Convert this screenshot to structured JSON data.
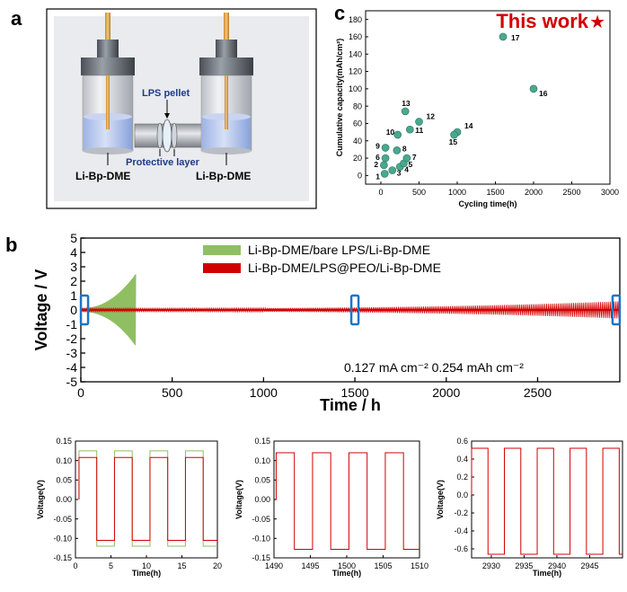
{
  "panels": {
    "a": "a",
    "b": "b",
    "c": "c"
  },
  "colors": {
    "green": "#8fbf62",
    "red": "#d10000",
    "teal": "#4aa88e",
    "box": "#1a75c8"
  },
  "diagram": {
    "pellet_label": "LPS pellet",
    "layer_label": "Protective layer",
    "left_label": "Li-Bp-DME",
    "right_label": "Li-Bp-DME"
  },
  "chart_data": [
    {
      "id": "c",
      "type": "scatter",
      "title": "",
      "badge": "This work",
      "badge_star": "★",
      "xlabel": "Cycling time(h)",
      "ylabel": "Cumulative capacity(mAh/cm²)",
      "xlim": [
        -200,
        3000
      ],
      "ylim": [
        -10,
        190
      ],
      "xticks": [
        0,
        500,
        1000,
        1500,
        2000,
        2500,
        3000
      ],
      "yticks": [
        0,
        20,
        40,
        60,
        80,
        100,
        120,
        140,
        160,
        180
      ],
      "points": [
        {
          "label": "1",
          "x": 50,
          "y": 2
        },
        {
          "label": "2",
          "x": 40,
          "y": 12
        },
        {
          "label": "3",
          "x": 150,
          "y": 6
        },
        {
          "label": "4",
          "x": 250,
          "y": 10
        },
        {
          "label": "5",
          "x": 300,
          "y": 14
        },
        {
          "label": "6",
          "x": 60,
          "y": 20
        },
        {
          "label": "7",
          "x": 340,
          "y": 20
        },
        {
          "label": "8",
          "x": 210,
          "y": 29
        },
        {
          "label": "9",
          "x": 60,
          "y": 32
        },
        {
          "label": "10",
          "x": 220,
          "y": 47
        },
        {
          "label": "11",
          "x": 380,
          "y": 53
        },
        {
          "label": "12",
          "x": 500,
          "y": 62
        },
        {
          "label": "13",
          "x": 320,
          "y": 74
        },
        {
          "label": "14",
          "x": 1000,
          "y": 50
        },
        {
          "label": "15",
          "x": 960,
          "y": 47
        },
        {
          "label": "16",
          "x": 2000,
          "y": 100
        },
        {
          "label": "17",
          "x": 1600,
          "y": 160
        }
      ]
    },
    {
      "id": "b",
      "type": "line",
      "xlabel": "Time / h",
      "ylabel": "Voltage / V",
      "xlim": [
        0,
        2950
      ],
      "ylim": [
        -5,
        5
      ],
      "xticks": [
        0,
        500,
        1000,
        1500,
        2000,
        2500
      ],
      "yticks": [
        -5,
        -4,
        -3,
        -2,
        -1,
        0,
        1,
        2,
        3,
        4,
        5
      ],
      "series": [
        {
          "name": "Li-Bp-DME/bare LPS/Li-Bp-DME",
          "color": "#8fbf62",
          "x_end": 300,
          "amp_start": 0.12,
          "amp_end": 2.5
        },
        {
          "name": "Li-Bp-DME/LPS@PEO/Li-Bp-DME",
          "color": "#d10000",
          "x_end": 2950,
          "amp_start": 0.11,
          "amp_end": 0.6
        }
      ],
      "annotation": "0.127 mA cm⁻²  0.254 mAh cm⁻²",
      "highlight_x": [
        20,
        1500,
        2930
      ]
    },
    {
      "id": "b1",
      "type": "line",
      "xlabel": "Time(h)",
      "ylabel": "Voltage(V)",
      "xlim": [
        0,
        20
      ],
      "ylim": [
        -0.15,
        0.15
      ],
      "xticks": [
        0,
        5,
        10,
        15,
        20
      ],
      "yticks": [
        -0.15,
        -0.1,
        -0.05,
        0.0,
        0.05,
        0.1,
        0.15
      ],
      "ytick_labels": [
        "-0.15",
        "-0.10",
        "-0.05",
        "0.00",
        "0.05",
        "0.10",
        "0.15"
      ],
      "series": [
        {
          "name": "green",
          "color": "#8fbf62",
          "x_start": 0.5,
          "x_end": 20,
          "high": 0.125,
          "low": -0.12
        },
        {
          "name": "red",
          "color": "#d10000",
          "x_start": 0.5,
          "x_end": 20,
          "high": 0.108,
          "low": -0.105
        }
      ]
    },
    {
      "id": "b2",
      "type": "line",
      "xlabel": "Time(h)",
      "ylabel": "Voltage(V)",
      "xlim": [
        1490,
        1510
      ],
      "ylim": [
        -0.15,
        0.15
      ],
      "xticks": [
        1490,
        1495,
        1500,
        1505,
        1510
      ],
      "yticks": [
        -0.15,
        -0.1,
        -0.05,
        0.0,
        0.05,
        0.1,
        0.15
      ],
      "ytick_labels": [
        "-0.15",
        "-0.10",
        "-0.05",
        "0.00",
        "0.05",
        "0.10",
        "0.15"
      ],
      "series": [
        {
          "name": "red",
          "color": "#d10000",
          "x_start": 1490.3,
          "x_end": 1510,
          "high": 0.12,
          "low": -0.128
        }
      ]
    },
    {
      "id": "b3",
      "type": "line",
      "xlabel": "Time(h)",
      "ylabel": "Voltage(V)",
      "xlim": [
        2927,
        2950
      ],
      "ylim": [
        -0.7,
        0.6
      ],
      "xticks": [
        2930,
        2935,
        2940,
        2945
      ],
      "yticks": [
        -0.6,
        -0.4,
        -0.2,
        0.0,
        0.2,
        0.4,
        0.6
      ],
      "ytick_labels": [
        "-0.6",
        "-0.4",
        "-0.2",
        "0.0",
        "0.2",
        "0.4",
        "0.6"
      ],
      "series": [
        {
          "name": "red",
          "color": "#d10000",
          "x_start": 2927,
          "x_end": 2950,
          "high": 0.52,
          "low": -0.66
        }
      ]
    }
  ]
}
